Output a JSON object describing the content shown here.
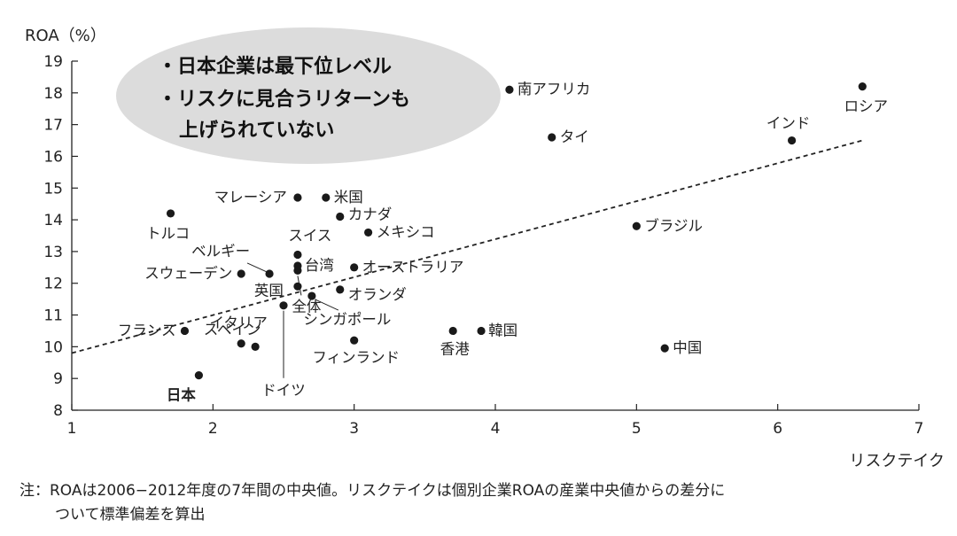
{
  "chart_data": {
    "type": "scatter",
    "title": "",
    "xlabel": "リスクテイク",
    "ylabel": "ROA（%）",
    "xlim": [
      1,
      7
    ],
    "ylim": [
      8,
      19
    ],
    "xticks": [
      "1",
      "2",
      "3",
      "4",
      "5",
      "6",
      "7"
    ],
    "yticks": [
      "8",
      "9",
      "10",
      "11",
      "12",
      "13",
      "14",
      "15",
      "16",
      "17",
      "18",
      "19"
    ],
    "grid": false,
    "points": [
      {
        "label": "日本",
        "x": 1.9,
        "y": 9.1
      },
      {
        "label": "スペイン",
        "x": 2.3,
        "y": 10.0
      },
      {
        "label": "イタリア",
        "x": 2.2,
        "y": 10.1
      },
      {
        "label": "フランス",
        "x": 1.8,
        "y": 10.5
      },
      {
        "label": "トルコ",
        "x": 1.7,
        "y": 14.2
      },
      {
        "label": "スウェーデン",
        "x": 2.2,
        "y": 12.3
      },
      {
        "label": "ベルギー",
        "x": 2.4,
        "y": 12.3
      },
      {
        "label": "英国",
        "x": 2.6,
        "y": 11.9
      },
      {
        "label": "ドイツ",
        "x": 2.5,
        "y": 11.3
      },
      {
        "label": "全体",
        "x": 2.6,
        "y": 12.4
      },
      {
        "label": "台湾",
        "x": 2.6,
        "y": 12.55
      },
      {
        "label": "スイス",
        "x": 2.6,
        "y": 12.9
      },
      {
        "label": "シンガポール",
        "x": 2.7,
        "y": 11.6
      },
      {
        "label": "マレーシア",
        "x": 2.6,
        "y": 14.7
      },
      {
        "label": "米国",
        "x": 2.8,
        "y": 14.7
      },
      {
        "label": "カナダ",
        "x": 2.9,
        "y": 14.1
      },
      {
        "label": "オーストラリア",
        "x": 3.0,
        "y": 12.5
      },
      {
        "label": "オランダ",
        "x": 2.9,
        "y": 11.8
      },
      {
        "label": "メキシコ",
        "x": 3.1,
        "y": 13.6
      },
      {
        "label": "フィンランド",
        "x": 3.0,
        "y": 10.2
      },
      {
        "label": "香港",
        "x": 3.7,
        "y": 10.5
      },
      {
        "label": "韓国",
        "x": 3.9,
        "y": 10.5
      },
      {
        "label": "南アフリカ",
        "x": 4.1,
        "y": 18.1
      },
      {
        "label": "タイ",
        "x": 4.4,
        "y": 16.6
      },
      {
        "label": "ブラジル",
        "x": 5.0,
        "y": 13.8
      },
      {
        "label": "中国",
        "x": 5.2,
        "y": 9.95
      },
      {
        "label": "インド",
        "x": 6.1,
        "y": 16.5
      },
      {
        "label": "ロシア",
        "x": 6.6,
        "y": 18.2
      }
    ],
    "trendline": {
      "style": "dashed",
      "from": [
        1.0,
        9.8
      ],
      "to": [
        6.6,
        16.5
      ]
    },
    "callout": [
      "・日本企業は最下位レベル",
      "・リスクに見合うリターンも",
      "上げられていない"
    ]
  },
  "note": {
    "line1": "注：ROAは2006−2012年度の7年間の中央値。リスクテイクは個別企業ROAの産業中央値からの差分に",
    "line2": "ついて標準偏差を算出"
  }
}
